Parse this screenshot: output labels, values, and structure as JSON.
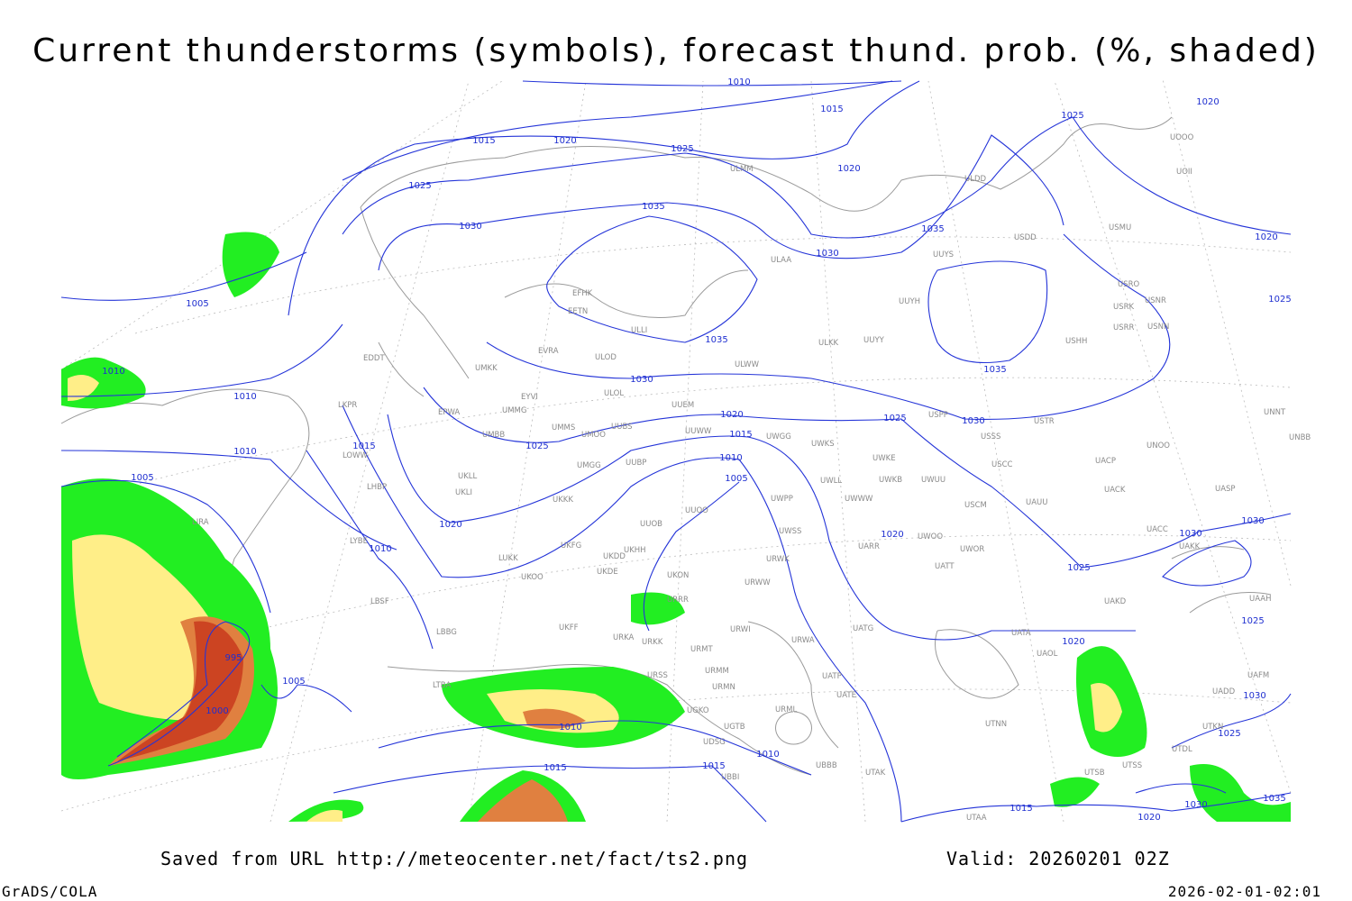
{
  "header": {
    "title": "Current thunderstorms (symbols), forecast thund. prob. (%, shaded)"
  },
  "isobar_labels": [
    "1010",
    "1015",
    "1020",
    "1025",
    "1015",
    "1020",
    "1025",
    "1025",
    "1020",
    "1035",
    "1030",
    "1035",
    "1030",
    "1020",
    "1025",
    "1005",
    "1035",
    "1035",
    "1010",
    "1030",
    "1010",
    "1020",
    "1025",
    "1030",
    "1015",
    "1015",
    "1010",
    "1010",
    "1025",
    "1005",
    "1005",
    "1020",
    "1010",
    "1030",
    "1030",
    "1020",
    "1025",
    "1025",
    "1020",
    "995",
    "1005",
    "1030",
    "1000",
    "1010",
    "1025",
    "1010",
    "1015",
    "1015",
    "1030",
    "1035",
    "1015",
    "1020"
  ],
  "stations": [
    "ULMM",
    "ULDD",
    "USDD",
    "USMU",
    "UOOO",
    "UOII",
    "EFHK",
    "EETN",
    "ULLI",
    "ULAA",
    "UUYS",
    "UUYH",
    "USRO",
    "USNR",
    "USRK",
    "USRR",
    "USNN",
    "USHH",
    "EVRA",
    "ULOD",
    "ULKK",
    "UUYY",
    "ULWW",
    "UMKK",
    "EDDT",
    "EYVI",
    "ULOL",
    "UUEM",
    "EPWA",
    "UMMG",
    "LKPR",
    "UMMS",
    "UUBS",
    "UUWW",
    "UMBB",
    "UMOO",
    "UWGG",
    "UWKS",
    "USPP",
    "USTR",
    "USSS",
    "UNOO",
    "UNNT",
    "UNBB",
    "LOWW",
    "UMGG",
    "UUBP",
    "UWKE",
    "USCC",
    "UACP",
    "UKLL",
    "UWKB",
    "UWUU",
    "UWLL",
    "LHBP",
    "UKLI",
    "UACK",
    "UASP",
    "UKKK",
    "UWPP",
    "UWWW",
    "USCM",
    "UAUU",
    "UUOO",
    "LIRA",
    "UUOB",
    "UWSS",
    "UWOO",
    "UACC",
    "UAKK",
    "LYBE",
    "UKHH",
    "UKFG",
    "UKDD",
    "UWOR",
    "UARR",
    "URWK",
    "UKDE",
    "UKON",
    "UKOO",
    "LUKK",
    "UATT",
    "URWW",
    "LBSF",
    "URRR",
    "UAKD",
    "UAAH",
    "LBBG",
    "UKFF",
    "URWI",
    "UATG",
    "UATA",
    "URKA",
    "URKK",
    "URWA",
    "URMT",
    "UAOL",
    "URSS",
    "URMM",
    "UATP",
    "UAFM",
    "UADD",
    "URMN",
    "UATE",
    "LTBA",
    "URML",
    "UGKO",
    "UTNN",
    "UGTB",
    "UTKN",
    "UDSG",
    "UTDL",
    "UBBB",
    "UTAK",
    "UBBI",
    "UTSB",
    "UTSS",
    "UTAA"
  ],
  "footer": {
    "saved": "Saved from URL http://meteocenter.net/fact/ts2.png",
    "valid": "Valid: 20260201 02Z",
    "software": "GrADS/COLA",
    "timestamp": "2026-02-01-02:01"
  }
}
